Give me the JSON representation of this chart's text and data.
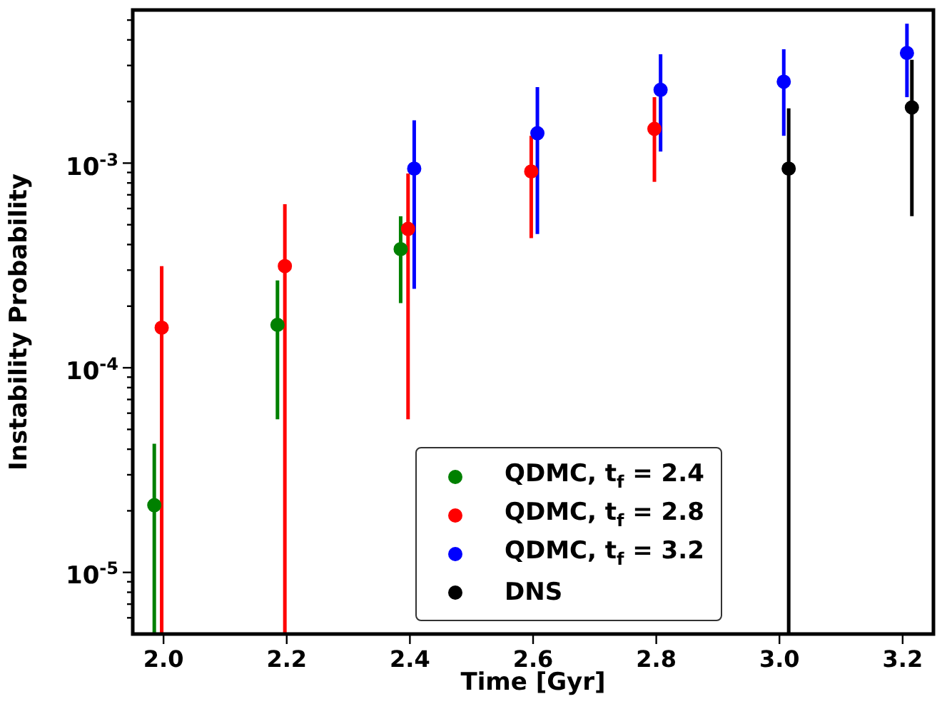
{
  "chart_data": {
    "type": "scatter",
    "xlabel": "Time [Gyr]",
    "ylabel": "Instability Probability",
    "log": "y",
    "marker": "circle",
    "legend": "bottom",
    "xlim": [
      1.95,
      3.25
    ],
    "xticks": [
      {
        "value": 2,
        "label": "2.0"
      },
      {
        "value": 2.2,
        "label": "2.2"
      },
      {
        "value": 2.4,
        "label": "2.4"
      },
      {
        "value": 2.6,
        "label": "2.6"
      },
      {
        "value": 2.8,
        "label": "2.8"
      },
      {
        "value": 3,
        "label": "3.0"
      },
      {
        "value": 3.2,
        "label": "3.2"
      }
    ],
    "ylim": [
      5e-06,
      0.0056
    ],
    "yticks": [
      {
        "value": 6e-06,
        "label": null
      },
      {
        "value": 7e-06,
        "label": null
      },
      {
        "value": 8e-06,
        "label": null
      },
      {
        "value": 9e-06,
        "label": null
      },
      {
        "value": 1e-05,
        "label": "10$^{-5}$"
      },
      {
        "value": 2e-05,
        "label": null
      },
      {
        "value": 3e-05,
        "label": null
      },
      {
        "value": 4e-05,
        "label": null
      },
      {
        "value": 5e-05,
        "label": null
      },
      {
        "value": 6e-05,
        "label": null
      },
      {
        "value": 7e-05,
        "label": null
      },
      {
        "value": 8e-05,
        "label": null
      },
      {
        "value": 9e-05,
        "label": null
      },
      {
        "value": 0.0001,
        "label": "10$^{-4}$"
      },
      {
        "value": 0.0002,
        "label": null
      },
      {
        "value": 0.0003,
        "label": null
      },
      {
        "value": 0.0004,
        "label": null
      },
      {
        "value": 0.0005,
        "label": null
      },
      {
        "value": 0.0006,
        "label": null
      },
      {
        "value": 0.0007,
        "label": null
      },
      {
        "value": 0.0008,
        "label": null
      },
      {
        "value": 0.0009,
        "label": null
      },
      {
        "value": 0.001,
        "label": "10$^{-3}$"
      },
      {
        "value": 0.002,
        "label": null
      },
      {
        "value": 0.003,
        "label": null
      },
      {
        "value": 0.004,
        "label": null
      },
      {
        "value": 0.005,
        "label": null
      }
    ],
    "series": [
      {
        "name": "QDMC, t$_{f}$ = 2.4",
        "color": "#008000",
        "x": [
          1.985,
          2.185,
          2.385
        ],
        "values": [
          2.13e-05,
          0.000162,
          0.00038
        ],
        "errors": [
          [
            5e-06,
            4.25e-05
          ],
          [
            5.6e-05,
            0.000267
          ],
          [
            0.000207,
            0.00055
          ]
        ]
      },
      {
        "name": "QDMC, t$_{f}$ = 2.8",
        "color": "#ff0000",
        "x": [
          1.997,
          2.197,
          2.397,
          2.597,
          2.797
        ],
        "values": [
          0.000157,
          0.000314,
          0.000477,
          0.00091,
          0.00147
        ],
        "errors": [
          [
            5e-06,
            0.000314
          ],
          [
            5e-06,
            0.00063
          ],
          [
            5.6e-05,
            0.00089
          ],
          [
            0.00043,
            0.00136
          ],
          [
            0.00081,
            0.0021
          ]
        ]
      },
      {
        "name": "QDMC, t$_{f}$ = 3.2",
        "color": "#0000ff",
        "x": [
          2.407,
          2.607,
          2.807,
          3.007,
          3.207
        ],
        "values": [
          0.00094,
          0.0014,
          0.00228,
          0.0025,
          0.00345
        ],
        "errors": [
          [
            0.000243,
            0.00162
          ],
          [
            0.00045,
            0.00235
          ],
          [
            0.00114,
            0.0034
          ],
          [
            0.00136,
            0.0036
          ],
          [
            0.0021,
            0.0048
          ]
        ]
      },
      {
        "name": "DNS",
        "color": "#000000",
        "x": [
          3.015,
          3.215
        ],
        "values": [
          0.00094,
          0.00187
        ],
        "errors": [
          [
            5e-06,
            0.00185
          ],
          [
            0.00055,
            0.0032
          ]
        ]
      }
    ]
  }
}
